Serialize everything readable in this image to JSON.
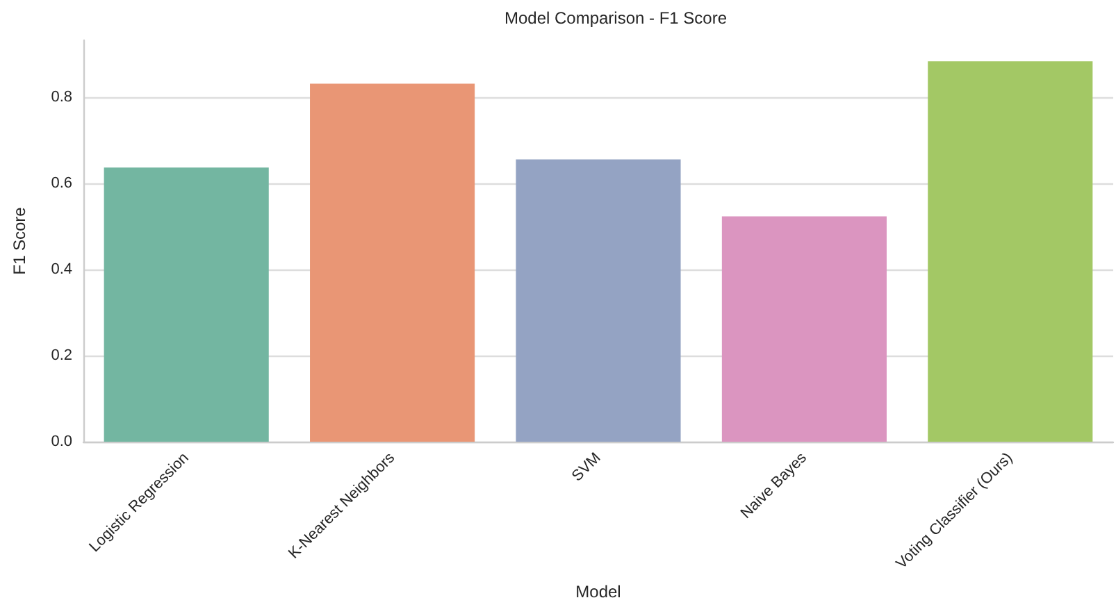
{
  "chart_data": {
    "type": "bar",
    "title": "Model Comparison - F1 Score",
    "xlabel": "Model",
    "ylabel": "F1 Score",
    "categories": [
      "Logistic Regression",
      "K-Nearest Neighbors",
      "SVM",
      "Naive Bayes",
      "Voting Classifier (Ours)"
    ],
    "values": [
      0.637,
      0.832,
      0.656,
      0.524,
      0.884
    ],
    "colors": [
      "#73b6a1",
      "#e99675",
      "#94a3c3",
      "#db95c0",
      "#a3c865"
    ],
    "ylim": [
      0,
      0.933
    ],
    "yticks": [
      {
        "value": 0,
        "label": "0.0"
      },
      {
        "value": 0.2,
        "label": "0.2"
      },
      {
        "value": 0.4,
        "label": "0.4"
      },
      {
        "value": 0.6,
        "label": "0.6"
      },
      {
        "value": 0.8,
        "label": "0.8"
      }
    ],
    "grid": "y"
  }
}
